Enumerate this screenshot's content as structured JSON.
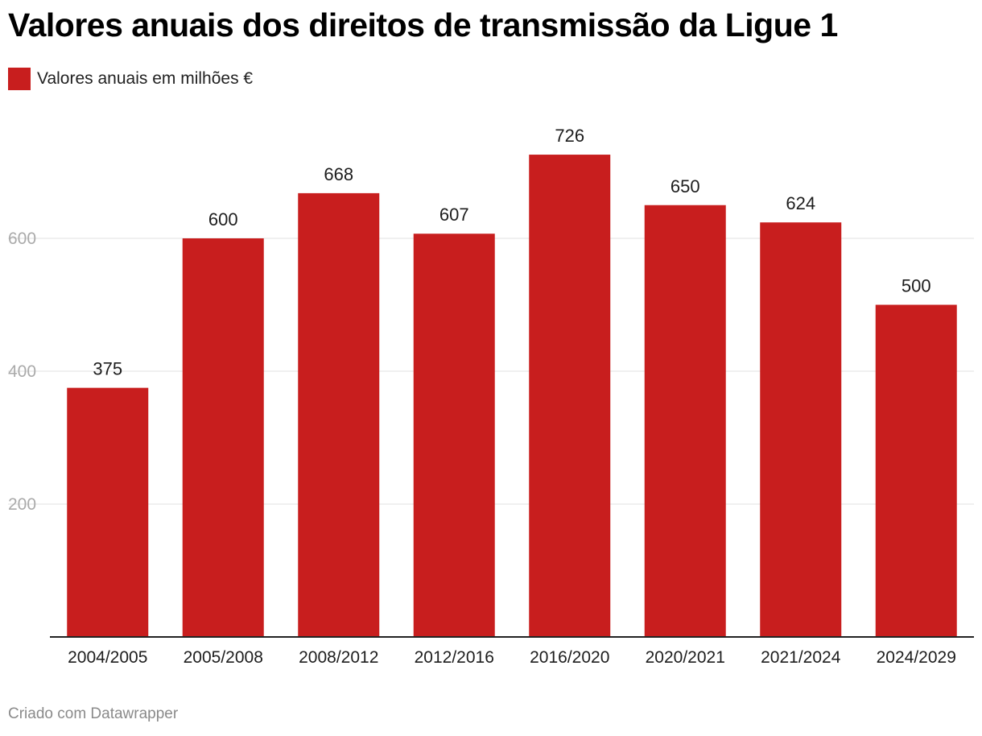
{
  "chart_data": {
    "type": "bar",
    "title": "Valores anuais dos direitos de transmissão da Ligue 1",
    "legend": [
      {
        "label": "Valores anuais em milhões €",
        "color": "#c81e1e"
      }
    ],
    "categories": [
      "2004/2005",
      "2005/2008",
      "2008/2012",
      "2012/2016",
      "2016/2020",
      "2020/2021",
      "2021/2024",
      "2024/2029"
    ],
    "values": [
      375,
      600,
      668,
      607,
      726,
      650,
      624,
      500
    ],
    "value_labels": [
      "375",
      "600",
      "668",
      "607",
      "726",
      "650",
      "624",
      "500"
    ],
    "yticks": [
      200,
      400,
      600
    ],
    "ytick_labels": [
      "200",
      "400",
      "600"
    ],
    "ylim": [
      0,
      726
    ],
    "xlabel": "",
    "ylabel": "",
    "grid": true,
    "bar_color": "#c81e1e"
  },
  "footer": {
    "credit": "Criado com Datawrapper"
  }
}
